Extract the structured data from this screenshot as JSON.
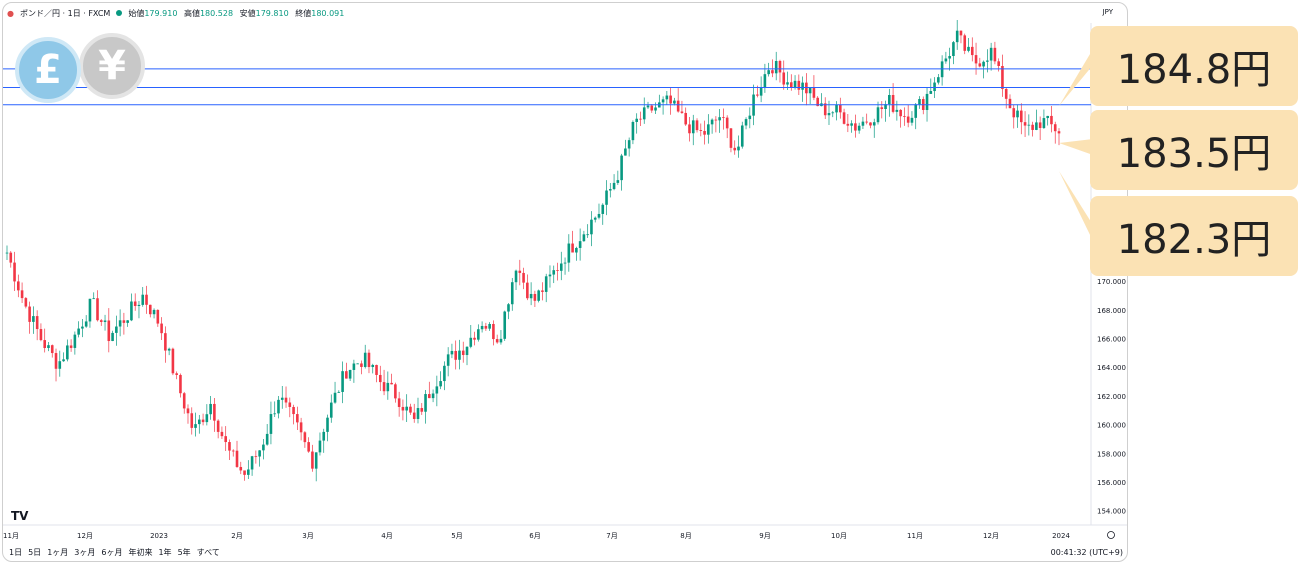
{
  "header": {
    "symbol": "ポンド／円 · 1日 · FXCM",
    "open_label": "始値",
    "open": "179.910",
    "high_label": "高値",
    "high": "180.528",
    "low_label": "安値",
    "low": "179.810",
    "close_label": "終値",
    "close": "180.091",
    "currency": "JPY"
  },
  "icons": {
    "gbp": "£",
    "jpy": "¥"
  },
  "timeframes": [
    "1日",
    "5日",
    "1ヶ月",
    "3ヶ月",
    "6ヶ月",
    "年初来",
    "1年",
    "5年",
    "すべて"
  ],
  "clock": "00:41:32 (UTC+9)",
  "logo": "TV",
  "callouts": [
    {
      "label": "184.8円",
      "price": 184.8
    },
    {
      "label": "183.5円",
      "price": 183.5
    },
    {
      "label": "182.3円",
      "price": 182.3
    }
  ],
  "colors": {
    "up": "#089981",
    "down": "#f23645",
    "line": "#2962ff",
    "callout": "#fbe2b4"
  },
  "chart_data": {
    "type": "candlestick",
    "ylim": [
      153,
      188
    ],
    "y_ticks": [
      "154.000",
      "156.000",
      "158.000",
      "160.000",
      "162.000",
      "164.000",
      "166.000",
      "168.000",
      "170.000"
    ],
    "x_ticks": [
      "11月",
      "12月",
      "2023",
      "2月",
      "3月",
      "4月",
      "5月",
      "6月",
      "7月",
      "8月",
      "9月",
      "10月",
      "11月",
      "12月",
      "2024"
    ],
    "horizontal_lines": [
      184.8,
      183.5,
      182.3
    ],
    "close_series": [
      172.0,
      168.5,
      166.0,
      164.2,
      166.2,
      168.5,
      166.2,
      167.5,
      169.0,
      167.0,
      163.0,
      159.5,
      161.5,
      158.2,
      156.5,
      158.5,
      162.0,
      160.0,
      157.5,
      161.0,
      163.8,
      164.6,
      163.0,
      162.0,
      160.2,
      162.5,
      164.5,
      165.5,
      167.2,
      166.0,
      171.2,
      168.5,
      170.2,
      172.0,
      173.5,
      175.0,
      177.5,
      181.0,
      182.0,
      182.5,
      181.0,
      180.2,
      181.5,
      179.0,
      182.8,
      185.2,
      184.0,
      183.5,
      182.0,
      181.8,
      180.8,
      181.5,
      182.5,
      181.5,
      182.5,
      184.8,
      187.0,
      185.2,
      186.0,
      182.5,
      180.5,
      181.2,
      180.5
    ]
  }
}
